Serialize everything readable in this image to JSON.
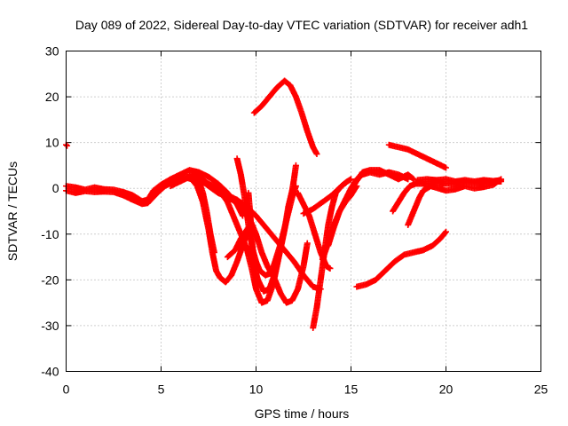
{
  "chart_data": {
    "type": "scatter",
    "title": "Day 089 of 2022, Sidereal Day-to-day VTEC variation (SDTVAR) for receiver adh1",
    "xlabel": "GPS time / hours",
    "ylabel": "SDTVAR / TECUs",
    "xlim": [
      0,
      25
    ],
    "ylim": [
      -40,
      30
    ],
    "xticks": [
      "0",
      "5",
      "10",
      "15",
      "20",
      "25"
    ],
    "yticks": [
      "-40",
      "-30",
      "-20",
      "-10",
      "0",
      "10",
      "20",
      "30"
    ],
    "grid": true,
    "marker": "+",
    "color": "#ff0000",
    "series": [
      {
        "points": [
          [
            0.0,
            9.5
          ],
          [
            0.05,
            9.3
          ]
        ]
      },
      {
        "points": [
          [
            0.0,
            0.5
          ],
          [
            0.5,
            0.2
          ],
          [
            1.0,
            -0.3
          ],
          [
            1.5,
            0.2
          ],
          [
            2.0,
            -0.2
          ],
          [
            2.5,
            -0.3
          ],
          [
            3.0,
            -0.8
          ],
          [
            3.5,
            -1.5
          ],
          [
            4.0,
            -2.8
          ],
          [
            4.3,
            -2.5
          ],
          [
            4.6,
            -0.5
          ],
          [
            5.0,
            0.8
          ],
          [
            5.5,
            2.0
          ],
          [
            6.0,
            3.0
          ],
          [
            6.5,
            4.0
          ],
          [
            7.0,
            3.5
          ],
          [
            7.5,
            2.5
          ],
          [
            8.0,
            1.0
          ],
          [
            8.5,
            -1.0
          ],
          [
            9.0,
            -3.5
          ],
          [
            9.3,
            -6.0
          ]
        ]
      },
      {
        "points": [
          [
            0.0,
            -0.5
          ],
          [
            0.5,
            -1.0
          ],
          [
            1.0,
            -0.6
          ],
          [
            1.5,
            -0.8
          ],
          [
            2.0,
            -0.7
          ],
          [
            2.5,
            -0.8
          ],
          [
            3.0,
            -1.5
          ],
          [
            3.5,
            -2.5
          ],
          [
            4.0,
            -3.4
          ],
          [
            4.3,
            -3.2
          ],
          [
            4.8,
            -1.0
          ],
          [
            5.2,
            0.5
          ],
          [
            5.7,
            1.5
          ],
          [
            6.2,
            2.5
          ],
          [
            6.6,
            2.0
          ],
          [
            6.9,
            0.5
          ],
          [
            7.2,
            -3.0
          ],
          [
            7.5,
            -9.0
          ],
          [
            7.7,
            -14.0
          ],
          [
            7.9,
            -18.0
          ],
          [
            8.1,
            -19.5
          ],
          [
            8.4,
            -20.5
          ],
          [
            8.7,
            -19.0
          ],
          [
            9.0,
            -16.0
          ],
          [
            9.3,
            -12.5
          ],
          [
            9.6,
            -9.0
          ]
        ]
      },
      {
        "points": [
          [
            5.5,
            0.5
          ],
          [
            6.0,
            1.5
          ],
          [
            6.5,
            2.5
          ],
          [
            7.0,
            1.5
          ],
          [
            7.2,
            -1.0
          ],
          [
            7.4,
            -5.0
          ],
          [
            7.6,
            -10.0
          ],
          [
            7.8,
            -14.0
          ]
        ]
      },
      {
        "points": [
          [
            6.5,
            3.0
          ],
          [
            7.0,
            2.5
          ],
          [
            7.5,
            1.0
          ],
          [
            8.0,
            0.0
          ],
          [
            8.5,
            -3.0
          ],
          [
            9.0,
            -8.0
          ],
          [
            9.5,
            -13.0
          ],
          [
            9.8,
            -18.0
          ],
          [
            10.0,
            -22.0
          ],
          [
            10.3,
            -25.0
          ],
          [
            10.6,
            -24.5
          ],
          [
            10.9,
            -21.0
          ],
          [
            11.2,
            -15.0
          ],
          [
            11.5,
            -9.0
          ],
          [
            11.7,
            -4.0
          ],
          [
            11.9,
            -0.5
          ],
          [
            12.0,
            2.0
          ],
          [
            12.1,
            5.0
          ]
        ]
      },
      {
        "points": [
          [
            7.0,
            2.0
          ],
          [
            7.5,
            0.5
          ],
          [
            8.0,
            -1.0
          ],
          [
            8.5,
            -2.0
          ],
          [
            9.0,
            -3.0
          ],
          [
            9.5,
            -5.0
          ],
          [
            10.0,
            -10.0
          ],
          [
            10.3,
            -14.0
          ],
          [
            10.6,
            -17.0
          ],
          [
            11.0,
            -20.0
          ],
          [
            11.3,
            -23.0
          ],
          [
            11.6,
            -25.0
          ],
          [
            11.9,
            -24.5
          ],
          [
            12.2,
            -22.0
          ],
          [
            12.5,
            -17.0
          ],
          [
            12.7,
            -12.0
          ]
        ]
      },
      {
        "points": [
          [
            8.0,
            -0.5
          ],
          [
            8.5,
            -1.5
          ],
          [
            9.0,
            -2.5
          ],
          [
            9.5,
            -4.0
          ],
          [
            10.0,
            -6.0
          ],
          [
            10.5,
            -8.5
          ],
          [
            11.0,
            -11.0
          ],
          [
            11.5,
            -13.5
          ],
          [
            12.0,
            -16.0
          ],
          [
            12.5,
            -19.0
          ],
          [
            13.0,
            -21.5
          ],
          [
            13.4,
            -22.0
          ]
        ]
      },
      {
        "points": [
          [
            9.0,
            6.5
          ],
          [
            9.2,
            3.0
          ],
          [
            9.4,
            -2.0
          ],
          [
            9.6,
            -8.0
          ],
          [
            9.8,
            -13.0
          ],
          [
            10.0,
            -16.0
          ],
          [
            10.2,
            -18.0
          ],
          [
            10.5,
            -19.0
          ],
          [
            10.8,
            -18.5
          ],
          [
            11.0,
            -16.0
          ],
          [
            11.3,
            -12.0
          ],
          [
            11.6,
            -7.0
          ]
        ]
      },
      {
        "points": [
          [
            12.2,
            -1.0
          ],
          [
            12.5,
            -3.5
          ],
          [
            12.8,
            -6.0
          ],
          [
            13.1,
            -10.0
          ],
          [
            13.4,
            -14.0
          ],
          [
            13.7,
            -17.0
          ],
          [
            13.9,
            -17.5
          ]
        ]
      },
      {
        "points": [
          [
            9.6,
            -1.0
          ],
          [
            9.7,
            -6.0
          ],
          [
            9.8,
            -12.0
          ],
          [
            9.9,
            -17.0
          ],
          [
            10.1,
            -20.0
          ],
          [
            10.4,
            -22.5
          ],
          [
            10.7,
            -22.0
          ],
          [
            11.0,
            -18.5
          ],
          [
            11.3,
            -13.0
          ],
          [
            11.6,
            -7.0
          ],
          [
            11.9,
            -2.0
          ],
          [
            12.1,
            0.5
          ]
        ]
      },
      {
        "points": [
          [
            8.5,
            -15.0
          ],
          [
            8.9,
            -13.5
          ],
          [
            9.2,
            -11.0
          ],
          [
            9.6,
            -8.5
          ]
        ]
      },
      {
        "points": [
          [
            9.9,
            16.5
          ],
          [
            10.3,
            18.0
          ],
          [
            10.7,
            20.0
          ],
          [
            11.1,
            22.0
          ],
          [
            11.5,
            23.5
          ],
          [
            11.8,
            22.5
          ],
          [
            12.1,
            20.0
          ],
          [
            12.4,
            16.5
          ],
          [
            12.7,
            12.5
          ],
          [
            13.0,
            9.0
          ],
          [
            13.2,
            7.5
          ]
        ]
      },
      {
        "points": [
          [
            13.0,
            -30.5
          ],
          [
            13.2,
            -26.0
          ],
          [
            13.4,
            -20.0
          ],
          [
            13.6,
            -14.0
          ],
          [
            13.8,
            -8.0
          ],
          [
            14.0,
            -4.0
          ],
          [
            14.2,
            -1.0
          ],
          [
            14.5,
            0.5
          ],
          [
            14.8,
            1.5
          ],
          [
            15.0,
            2.0
          ]
        ]
      },
      {
        "points": [
          [
            13.5,
            -15.5
          ],
          [
            13.8,
            -12.0
          ],
          [
            14.1,
            -8.0
          ],
          [
            14.4,
            -5.0
          ],
          [
            14.7,
            -3.0
          ],
          [
            15.0,
            -1.5
          ],
          [
            15.3,
            0.5
          ]
        ]
      },
      {
        "points": [
          [
            12.5,
            -5.5
          ],
          [
            13.0,
            -4.5
          ],
          [
            13.5,
            -3.0
          ],
          [
            14.0,
            -1.5
          ],
          [
            14.5,
            0.5
          ],
          [
            14.8,
            1.5
          ]
        ]
      },
      {
        "points": [
          [
            13.8,
            -12.5
          ],
          [
            14.1,
            -8.5
          ],
          [
            14.4,
            -5.0
          ],
          [
            14.7,
            -2.5
          ],
          [
            15.0,
            0.0
          ],
          [
            15.3,
            2.0
          ],
          [
            15.6,
            3.0
          ],
          [
            16.0,
            3.5
          ],
          [
            16.5,
            3.0
          ],
          [
            17.0,
            3.5
          ],
          [
            17.5,
            3.0
          ],
          [
            18.0,
            2.0
          ]
        ]
      },
      {
        "points": [
          [
            15.2,
            1.0
          ],
          [
            15.6,
            3.5
          ],
          [
            16.0,
            4.0
          ],
          [
            16.5,
            4.0
          ],
          [
            17.0,
            3.0
          ],
          [
            17.5,
            2.0
          ],
          [
            18.0,
            3.0
          ],
          [
            18.3,
            2.0
          ]
        ]
      },
      {
        "points": [
          [
            15.3,
            -21.5
          ],
          [
            15.8,
            -21.0
          ],
          [
            16.3,
            -20.0
          ],
          [
            16.8,
            -18.0
          ],
          [
            17.3,
            -16.0
          ],
          [
            17.8,
            -14.5
          ],
          [
            18.3,
            -14.0
          ],
          [
            18.8,
            -13.5
          ],
          [
            19.3,
            -12.5
          ],
          [
            19.7,
            -11.0
          ],
          [
            20.0,
            -9.5
          ]
        ]
      },
      {
        "points": [
          [
            17.0,
            9.5
          ],
          [
            17.5,
            9.0
          ],
          [
            18.0,
            8.5
          ],
          [
            18.5,
            7.5
          ],
          [
            19.0,
            6.5
          ],
          [
            19.5,
            5.5
          ],
          [
            20.0,
            4.5
          ]
        ]
      },
      {
        "points": [
          [
            17.2,
            -5.0
          ],
          [
            17.5,
            -3.0
          ],
          [
            17.8,
            -1.0
          ],
          [
            18.1,
            0.5
          ],
          [
            18.4,
            1.0
          ],
          [
            18.8,
            1.0
          ],
          [
            19.2,
            1.0
          ],
          [
            19.6,
            1.2
          ],
          [
            20.0,
            1.0
          ],
          [
            20.5,
            1.0
          ],
          [
            21.0,
            1.5
          ],
          [
            21.5,
            1.2
          ],
          [
            22.0,
            1.5
          ],
          [
            22.5,
            1.5
          ],
          [
            22.9,
            1.5
          ]
        ]
      },
      {
        "points": [
          [
            18.0,
            -8.0
          ],
          [
            18.2,
            -6.0
          ],
          [
            18.4,
            -4.0
          ],
          [
            18.6,
            -2.0
          ],
          [
            18.8,
            -0.5
          ],
          [
            19.2,
            0.5
          ],
          [
            19.6,
            0.0
          ],
          [
            20.0,
            -0.5
          ],
          [
            20.5,
            -0.2
          ],
          [
            21.0,
            0.5
          ],
          [
            21.5,
            0.0
          ],
          [
            22.0,
            0.3
          ],
          [
            22.5,
            0.8
          ],
          [
            22.9,
            2.0
          ]
        ]
      },
      {
        "points": [
          [
            18.5,
            1.8
          ],
          [
            19.0,
            2.0
          ],
          [
            19.5,
            1.8
          ],
          [
            20.0,
            2.0
          ],
          [
            20.5,
            1.5
          ],
          [
            21.0,
            1.8
          ],
          [
            21.5,
            1.5
          ],
          [
            22.0,
            1.8
          ],
          [
            22.5,
            1.6
          ],
          [
            22.9,
            1.8
          ]
        ]
      }
    ]
  }
}
